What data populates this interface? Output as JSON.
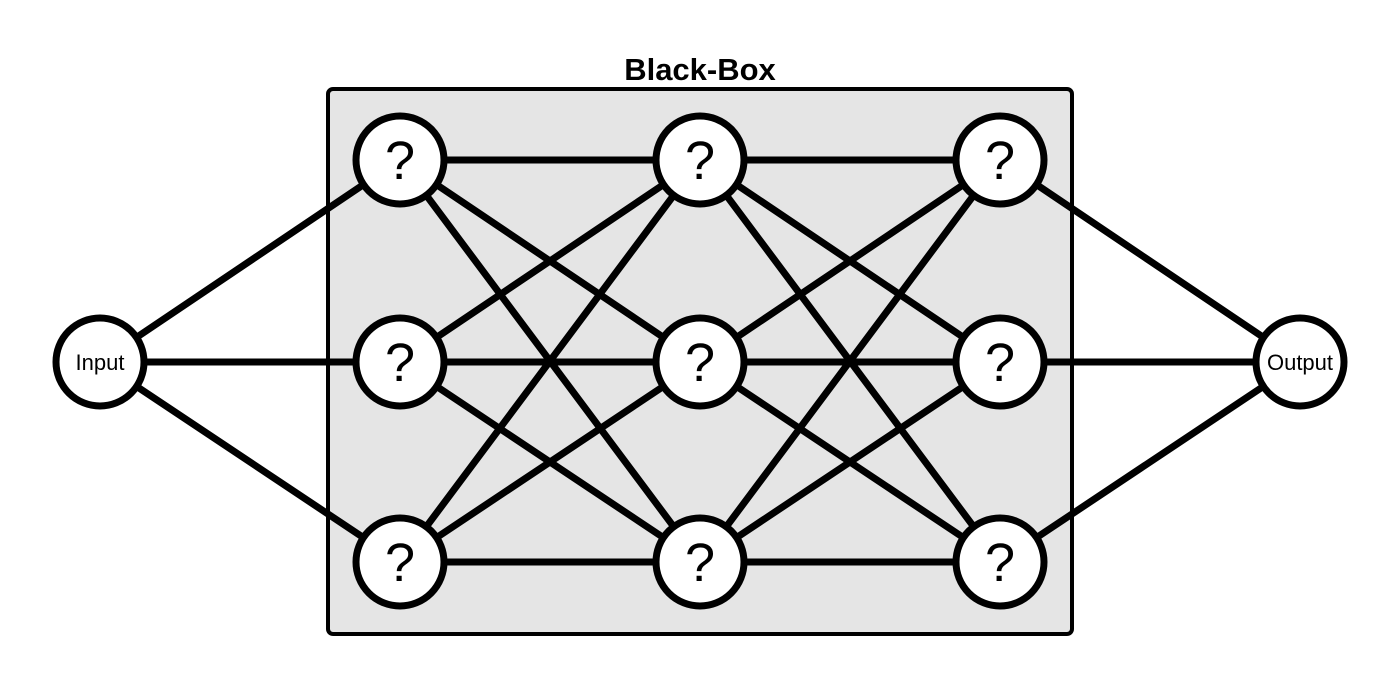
{
  "diagram": {
    "title": "Black-Box",
    "input_label": "Input",
    "output_label": "Output",
    "hidden_label": "?",
    "layers": [
      {
        "name": "hidden-layer-1",
        "node_count": 3
      },
      {
        "name": "hidden-layer-2",
        "node_count": 3
      },
      {
        "name": "hidden-layer-3",
        "node_count": 3
      }
    ],
    "connectivity": "fully-connected",
    "colors": {
      "box_fill": "#e5e5e5",
      "stroke": "#000000",
      "node_fill": "#ffffff"
    }
  }
}
